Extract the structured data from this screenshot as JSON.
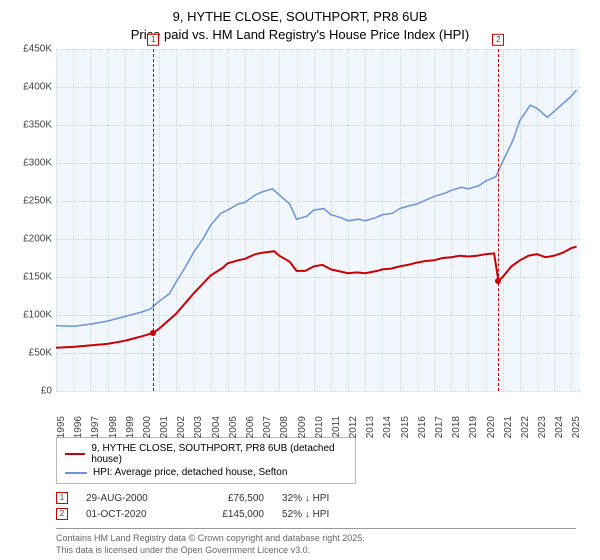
{
  "title": {
    "line1": "9, HYTHE CLOSE, SOUTHPORT, PR8 6UB",
    "line2": "Price paid vs. HM Land Registry's House Price Index (HPI)"
  },
  "chart": {
    "type": "line",
    "background_color": "#f1f7fc",
    "grid_color": "#cfd9e3",
    "axis_color": "#888888",
    "font_size_ticks": 10,
    "x": {
      "min": 1995,
      "max": 2025.5,
      "ticks": [
        1995,
        1996,
        1997,
        1998,
        1999,
        2000,
        2001,
        2002,
        2003,
        2004,
        2005,
        2006,
        2007,
        2008,
        2009,
        2010,
        2011,
        2012,
        2013,
        2014,
        2015,
        2016,
        2017,
        2018,
        2019,
        2020,
        2021,
        2022,
        2023,
        2024,
        2025
      ]
    },
    "y": {
      "min": 0,
      "max": 450000,
      "tick_step": 50000,
      "prefix": "£",
      "suffix_k": "K"
    },
    "series": [
      {
        "name": "price_paid",
        "label": "9, HYTHE CLOSE, SOUTHPORT, PR8 6UB (detached house)",
        "color": "#cc0000",
        "line_width": 2,
        "points": [
          [
            1995,
            57000
          ],
          [
            1996,
            58000
          ],
          [
            1997,
            60000
          ],
          [
            1998,
            62000
          ],
          [
            1999,
            66000
          ],
          [
            2000,
            72000
          ],
          [
            2000.66,
            76500
          ],
          [
            2001,
            82000
          ],
          [
            2002,
            102000
          ],
          [
            2003,
            128000
          ],
          [
            2004,
            152000
          ],
          [
            2004.7,
            162000
          ],
          [
            2005,
            168000
          ],
          [
            2005.6,
            172000
          ],
          [
            2006,
            174000
          ],
          [
            2006.6,
            180000
          ],
          [
            2007,
            182000
          ],
          [
            2007.7,
            184000
          ],
          [
            2008,
            178000
          ],
          [
            2008.6,
            170000
          ],
          [
            2009,
            158000
          ],
          [
            2009.5,
            158000
          ],
          [
            2010,
            164000
          ],
          [
            2010.5,
            166000
          ],
          [
            2011,
            160000
          ],
          [
            2012,
            155000
          ],
          [
            2012.5,
            156000
          ],
          [
            2013,
            155000
          ],
          [
            2013.7,
            158000
          ],
          [
            2014,
            160000
          ],
          [
            2014.5,
            161000
          ],
          [
            2015,
            164000
          ],
          [
            2015.5,
            166000
          ],
          [
            2016,
            169000
          ],
          [
            2016.5,
            171000
          ],
          [
            2017,
            172000
          ],
          [
            2017.5,
            175000
          ],
          [
            2018,
            176000
          ],
          [
            2018.5,
            178000
          ],
          [
            2019,
            177000
          ],
          [
            2019.5,
            178000
          ],
          [
            2020,
            180000
          ],
          [
            2020.5,
            181000
          ],
          [
            2020.75,
            145000
          ],
          [
            2021,
            150000
          ],
          [
            2021.5,
            164000
          ],
          [
            2022,
            172000
          ],
          [
            2022.5,
            178000
          ],
          [
            2023,
            180000
          ],
          [
            2023.5,
            176000
          ],
          [
            2024,
            178000
          ],
          [
            2024.5,
            182000
          ],
          [
            2025,
            188000
          ],
          [
            2025.3,
            190000
          ]
        ]
      },
      {
        "name": "hpi",
        "label": "HPI: Average price, detached house, Sefton",
        "color": "#6b93d6",
        "line_width": 1.5,
        "points": [
          [
            1995,
            86000
          ],
          [
            1996,
            85000
          ],
          [
            1997,
            88000
          ],
          [
            1998,
            92000
          ],
          [
            1999,
            98000
          ],
          [
            2000,
            104000
          ],
          [
            2000.5,
            108000
          ],
          [
            2001,
            118000
          ],
          [
            2001.6,
            128000
          ],
          [
            2002,
            144000
          ],
          [
            2002.5,
            162000
          ],
          [
            2003,
            182000
          ],
          [
            2003.6,
            202000
          ],
          [
            2004,
            218000
          ],
          [
            2004.6,
            234000
          ],
          [
            2005,
            238000
          ],
          [
            2005.6,
            246000
          ],
          [
            2006,
            248000
          ],
          [
            2006.6,
            258000
          ],
          [
            2007,
            262000
          ],
          [
            2007.6,
            266000
          ],
          [
            2008,
            258000
          ],
          [
            2008.6,
            246000
          ],
          [
            2009,
            226000
          ],
          [
            2009.6,
            230000
          ],
          [
            2010,
            238000
          ],
          [
            2010.6,
            240000
          ],
          [
            2011,
            232000
          ],
          [
            2011.6,
            228000
          ],
          [
            2012,
            224000
          ],
          [
            2012.6,
            226000
          ],
          [
            2013,
            224000
          ],
          [
            2013.6,
            228000
          ],
          [
            2014,
            232000
          ],
          [
            2014.6,
            234000
          ],
          [
            2015,
            240000
          ],
          [
            2015.6,
            244000
          ],
          [
            2016,
            246000
          ],
          [
            2016.6,
            252000
          ],
          [
            2017,
            256000
          ],
          [
            2017.6,
            260000
          ],
          [
            2018,
            264000
          ],
          [
            2018.6,
            268000
          ],
          [
            2019,
            266000
          ],
          [
            2019.6,
            270000
          ],
          [
            2020,
            276000
          ],
          [
            2020.6,
            282000
          ],
          [
            2021,
            302000
          ],
          [
            2021.6,
            330000
          ],
          [
            2022,
            356000
          ],
          [
            2022.6,
            376000
          ],
          [
            2023,
            372000
          ],
          [
            2023.6,
            360000
          ],
          [
            2024,
            368000
          ],
          [
            2024.6,
            380000
          ],
          [
            2025,
            388000
          ],
          [
            2025.3,
            396000
          ]
        ]
      }
    ],
    "markers": [
      {
        "id": "1",
        "x": 2000.66,
        "y": 76500,
        "stem_from_top": true
      },
      {
        "id": "2",
        "x": 2020.75,
        "y": 145000,
        "stem_from_top": true
      }
    ]
  },
  "events": [
    {
      "id": "1",
      "date": "29-AUG-2000",
      "price": "£76,500",
      "note": "32% ↓ HPI"
    },
    {
      "id": "2",
      "date": "01-OCT-2020",
      "price": "£145,000",
      "note": "52% ↓ HPI"
    }
  ],
  "footer": {
    "line1": "Contains HM Land Registry data © Crown copyright and database right 2025.",
    "line2": "This data is licensed under the Open Government Licence v3.0."
  }
}
